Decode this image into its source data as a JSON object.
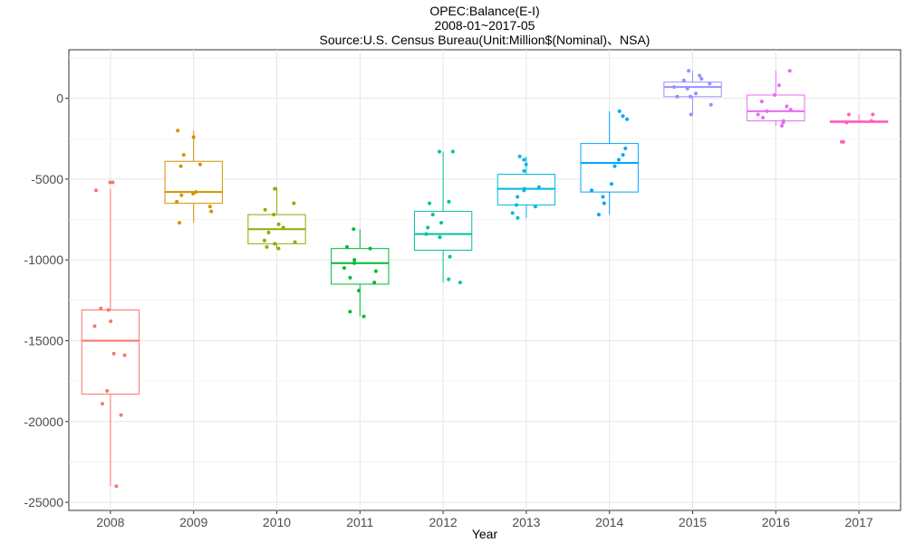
{
  "chart_data": {
    "type": "box",
    "title": "OPEC:Balance(E-I)",
    "subtitle_lines": [
      "2008-01~2017-05",
      "Source:U.S. Census Bureau(Unit:Million$(Nominal)、NSA)"
    ],
    "xlabel": "Year",
    "ylabel": "",
    "ylim": [
      -25500,
      3000
    ],
    "yticks": [
      0,
      -5000,
      -10000,
      -15000,
      -20000,
      -25000
    ],
    "yticklabels": [
      "0",
      "-5000",
      "-10000",
      "-15000",
      "-20000",
      "-25000"
    ],
    "grid": true,
    "legend": "none",
    "categories": [
      "2008",
      "2009",
      "2010",
      "2011",
      "2012",
      "2013",
      "2014",
      "2015",
      "2016",
      "2017"
    ],
    "series": [
      {
        "category": "2008",
        "color": "#F8766D",
        "box": {
          "whisker_low": -24000,
          "q1": -18300,
          "median": -15000,
          "q3": -13100,
          "whisker_high": -5600
        },
        "points": [
          -5200,
          -5200,
          -5700,
          -13000,
          -13100,
          -13800,
          -14100,
          -15900,
          -15800,
          -18100,
          -18900,
          -19600,
          -24000
        ]
      },
      {
        "category": "2009",
        "color": "#D39200",
        "box": {
          "whisker_low": -7700,
          "q1": -6500,
          "median": -5800,
          "q3": -3900,
          "whisker_high": -2000
        },
        "points": [
          -2000,
          -2400,
          -3500,
          -4100,
          -4200,
          -5800,
          -5900,
          -6000,
          -6400,
          -6700,
          -7000,
          -7700
        ]
      },
      {
        "category": "2010",
        "color": "#93AA00",
        "box": {
          "whisker_low": -9300,
          "q1": -9000,
          "median": -8100,
          "q3": -7200,
          "whisker_high": -5500
        },
        "points": [
          -5600,
          -6500,
          -6900,
          -7200,
          -7800,
          -8000,
          -8300,
          -8800,
          -8900,
          -9000,
          -9200,
          -9300
        ]
      },
      {
        "category": "2011",
        "color": "#00BA38",
        "box": {
          "whisker_low": -13500,
          "q1": -11500,
          "median": -10200,
          "q3": -9300,
          "whisker_high": -8100
        },
        "points": [
          -8100,
          -9200,
          -9300,
          -10000,
          -10200,
          -10500,
          -10700,
          -11100,
          -11400,
          -11900,
          -13200,
          -13500
        ]
      },
      {
        "category": "2012",
        "color": "#00C19F",
        "box": {
          "whisker_low": -11400,
          "q1": -9400,
          "median": -8400,
          "q3": -7000,
          "whisker_high": -3300
        },
        "points": [
          -3300,
          -3300,
          -6400,
          -6500,
          -7200,
          -7700,
          -8000,
          -8400,
          -8600,
          -9800,
          -11200,
          -11400
        ]
      },
      {
        "category": "2013",
        "color": "#00B9E3",
        "box": {
          "whisker_low": -7400,
          "q1": -6600,
          "median": -5600,
          "q3": -4700,
          "whisker_high": -3600
        },
        "points": [
          -3600,
          -3800,
          -4100,
          -4500,
          -5500,
          -5600,
          -5700,
          -6100,
          -6600,
          -6700,
          -7100,
          -7400
        ]
      },
      {
        "category": "2014",
        "color": "#00A6FF",
        "box": {
          "whisker_low": -7200,
          "q1": -5800,
          "median": -4000,
          "q3": -2800,
          "whisker_high": -800
        },
        "points": [
          -800,
          -1100,
          -1300,
          -3100,
          -3500,
          -3800,
          -4200,
          -5300,
          -5700,
          -6100,
          -6500,
          -7200
        ]
      },
      {
        "category": "2015",
        "color": "#9590FF",
        "box": {
          "whisker_low": -1000,
          "q1": 100,
          "median": 700,
          "q3": 1000,
          "whisker_high": 1700
        },
        "points": [
          1700,
          1400,
          1200,
          1100,
          900,
          700,
          600,
          300,
          100,
          100,
          -400,
          -1000
        ]
      },
      {
        "category": "2016",
        "color": "#E76BF3",
        "box": {
          "whisker_low": -1700,
          "q1": -1400,
          "median": -800,
          "q3": 200,
          "whisker_high": 1700
        },
        "points": [
          1700,
          800,
          200,
          -200,
          -500,
          -700,
          -800,
          -1000,
          -1200,
          -1400,
          -1500,
          -1700
        ]
      },
      {
        "category": "2017",
        "color": "#FF62BC",
        "box": {
          "whisker_low": -1500,
          "q1": -1500,
          "median": -1450,
          "q3": -1400,
          "whisker_high": -1000
        },
        "points": [
          -1000,
          -1000,
          -1400,
          -1500,
          -2700,
          -2700
        ]
      }
    ]
  }
}
